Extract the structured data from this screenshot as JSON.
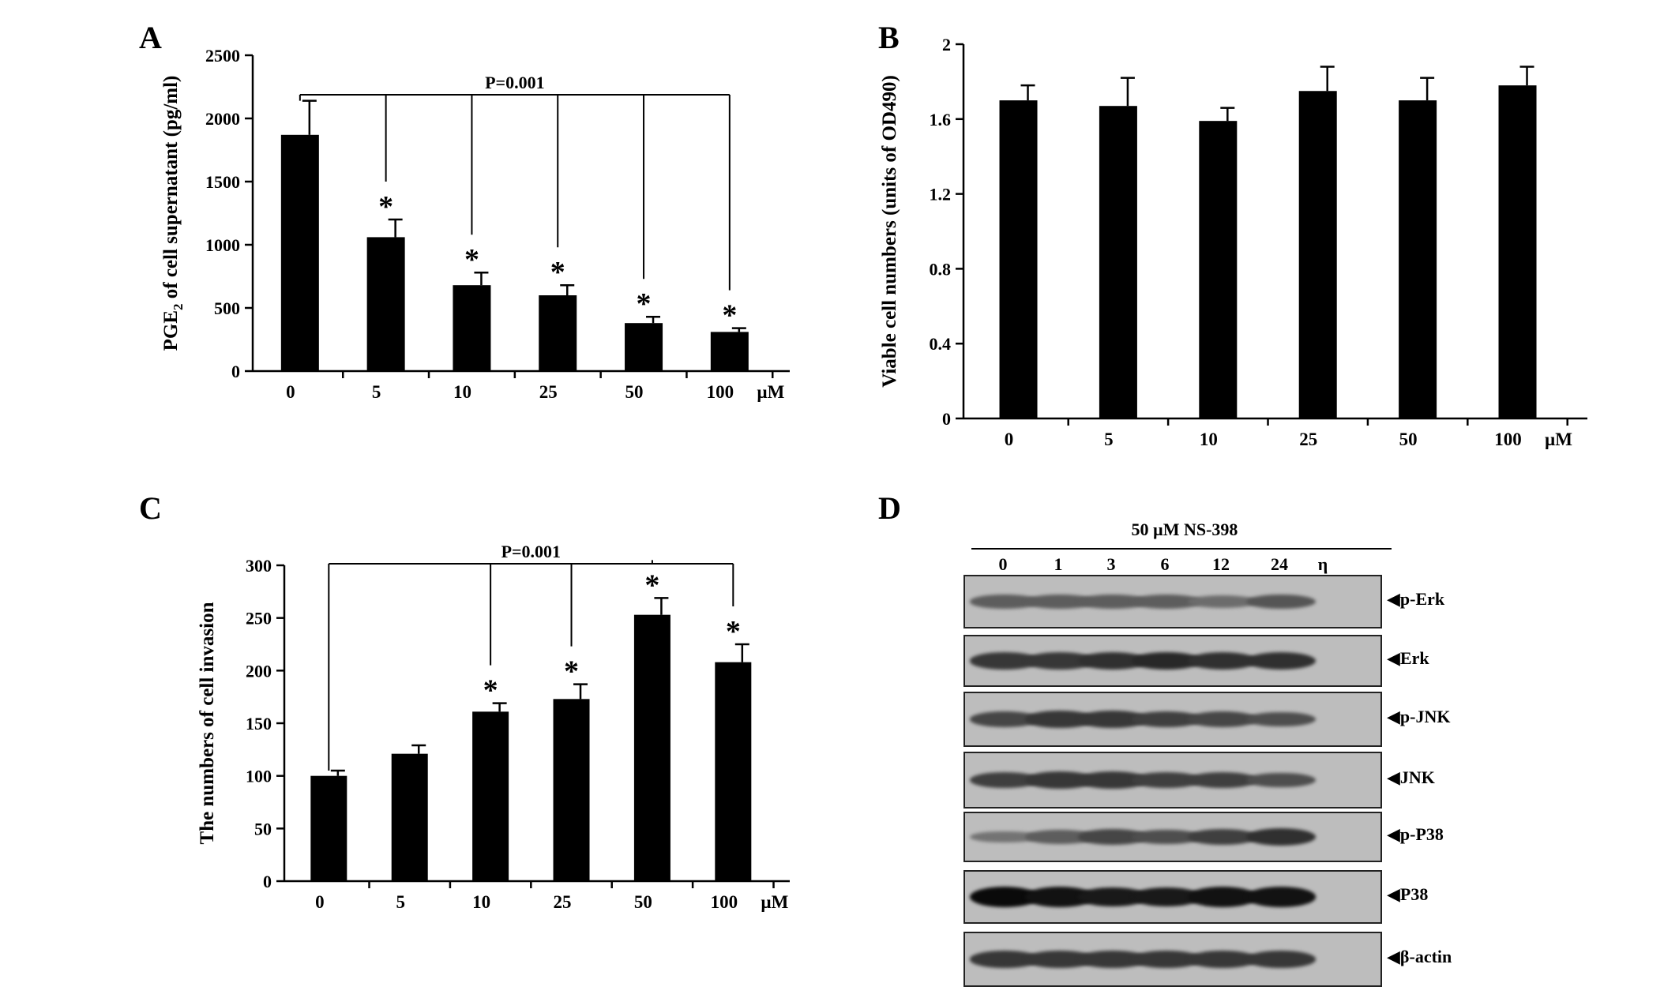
{
  "chart_data": [
    {
      "panel": "A",
      "type": "bar",
      "ylabel_main": "PGE",
      "ylabel_sub": "2",
      "ylabel_rest": " of cell supernatant (pg/ml)",
      "categories": [
        "0",
        "5",
        "10",
        "25",
        "50",
        "100"
      ],
      "unit": "µM",
      "values": [
        1870,
        1060,
        680,
        600,
        380,
        310
      ],
      "errors": [
        270,
        140,
        100,
        80,
        50,
        30
      ],
      "significant": [
        false,
        true,
        true,
        true,
        true,
        true
      ],
      "ylim": [
        0,
        2500
      ],
      "yticks": [
        0,
        500,
        1000,
        1500,
        2000,
        2500
      ],
      "pvalue_label": "P=0.001",
      "bracket_from": 0,
      "bracket_to": [
        1,
        2,
        3,
        4,
        5
      ]
    },
    {
      "panel": "B",
      "type": "bar",
      "ylabel": "Viable cell numbers (units of OD490)",
      "categories": [
        "0",
        "5",
        "10",
        "25",
        "50",
        "100"
      ],
      "unit": "µM",
      "values": [
        1.7,
        1.67,
        1.59,
        1.75,
        1.7,
        1.78
      ],
      "errors": [
        0.08,
        0.15,
        0.07,
        0.13,
        0.12,
        0.1
      ],
      "ylim": [
        0,
        2
      ],
      "yticks": [
        "0",
        "0.4",
        "0.8",
        "1.2",
        "1.6",
        "2"
      ]
    },
    {
      "panel": "C",
      "type": "bar",
      "ylabel": "The numbers of cell invasion",
      "categories": [
        "0",
        "5",
        "10",
        "25",
        "50",
        "100"
      ],
      "unit": "µM",
      "values": [
        100,
        121,
        161,
        173,
        253,
        208
      ],
      "errors": [
        5,
        8,
        8,
        14,
        16,
        17
      ],
      "significant": [
        false,
        false,
        true,
        true,
        true,
        true
      ],
      "ylim": [
        0,
        300
      ],
      "yticks": [
        0,
        50,
        100,
        150,
        200,
        250,
        300
      ],
      "pvalue_label": "P=0.001",
      "bracket_from": 0,
      "bracket_to": [
        2,
        3,
        4,
        5
      ]
    }
  ],
  "significance_marker": "*",
  "blot": {
    "panel": "D",
    "treatment_label": "50 µM NS-398",
    "timepoints": [
      "0",
      "1",
      "3",
      "6",
      "12",
      "24"
    ],
    "time_unit": "η",
    "rows": [
      {
        "label": "p-Erk",
        "intensities": [
          0.45,
          0.45,
          0.45,
          0.45,
          0.35,
          0.5
        ]
      },
      {
        "label": "Erk",
        "intensities": [
          0.7,
          0.7,
          0.75,
          0.8,
          0.75,
          0.75
        ]
      },
      {
        "label": "p-JNK",
        "intensities": [
          0.6,
          0.7,
          0.7,
          0.65,
          0.6,
          0.55
        ]
      },
      {
        "label": "JNK",
        "intensities": [
          0.65,
          0.7,
          0.7,
          0.65,
          0.65,
          0.55
        ]
      },
      {
        "label": "p-P38",
        "intensities": [
          0.3,
          0.45,
          0.6,
          0.55,
          0.65,
          0.75
        ]
      },
      {
        "label": "P38",
        "intensities": [
          1.0,
          0.95,
          0.9,
          0.9,
          0.95,
          0.95
        ]
      },
      {
        "label": "β-actin",
        "intensities": [
          0.7,
          0.7,
          0.7,
          0.7,
          0.7,
          0.7
        ]
      }
    ]
  }
}
